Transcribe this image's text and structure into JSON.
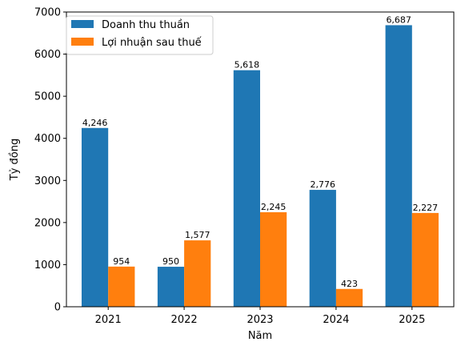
{
  "chart_data": {
    "type": "bar",
    "categories": [
      "2021",
      "2022",
      "2023",
      "2024",
      "2025"
    ],
    "series": [
      {
        "name": "Doanh thu thuần",
        "values": [
          4246,
          950,
          5618,
          2776,
          6687
        ],
        "labels": [
          "4,246",
          "950",
          "5,618",
          "2,776",
          "6,687"
        ],
        "color": "#1f77b4"
      },
      {
        "name": "Lợi nhuận sau thuế",
        "values": [
          954,
          1577,
          2245,
          423,
          2227
        ],
        "labels": [
          "954",
          "1,577",
          "2,245",
          "423",
          "2,227"
        ],
        "color": "#ff7f0e"
      }
    ],
    "xlabel": "Năm",
    "ylabel": "Tỷ đồng",
    "ylim": [
      0,
      7000
    ],
    "yticks": [
      0,
      1000,
      2000,
      3000,
      4000,
      5000,
      6000,
      7000
    ],
    "grid": false,
    "legend_position": "top-left"
  }
}
